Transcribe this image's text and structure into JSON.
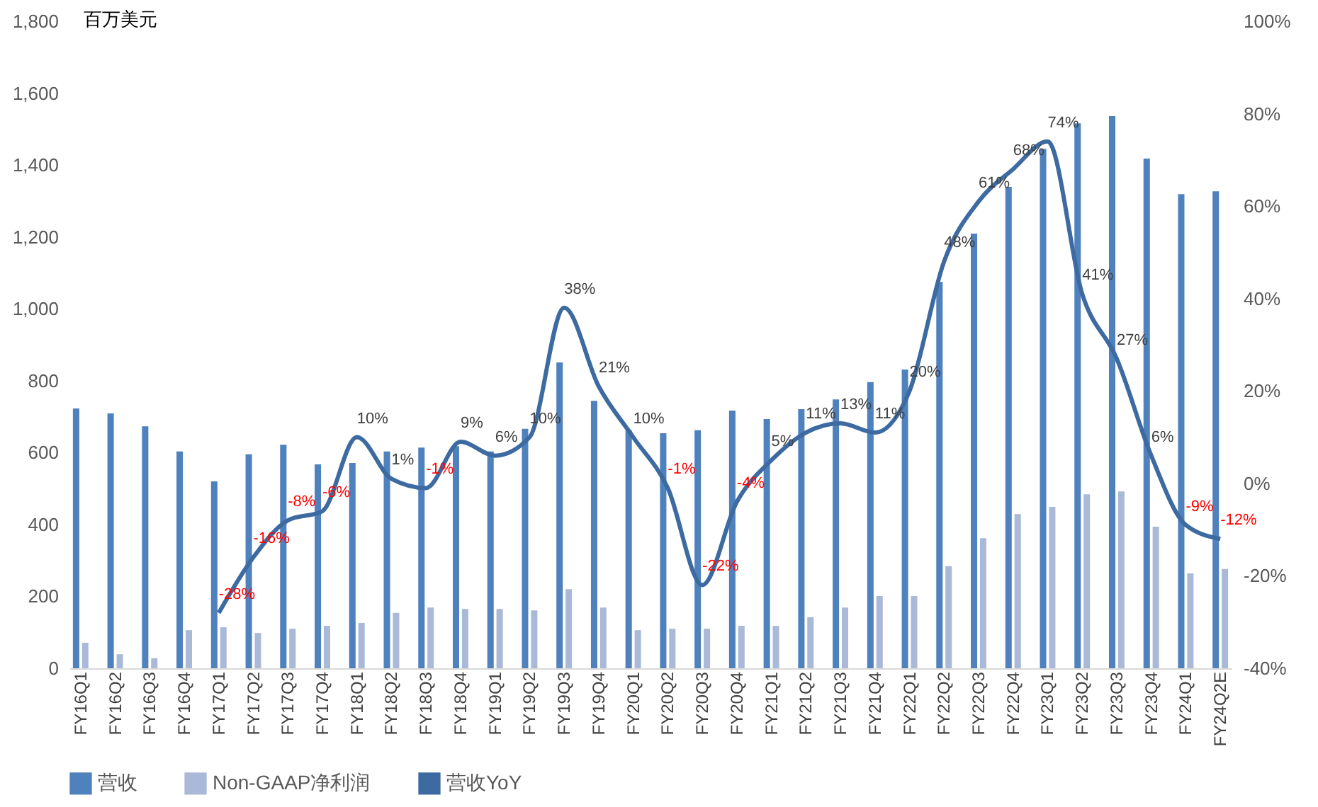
{
  "chart_data": {
    "type": "bar",
    "ylabel": "百万美元",
    "categories": [
      "FY16Q1",
      "FY16Q2",
      "FY16Q3",
      "FY16Q4",
      "FY17Q1",
      "FY17Q2",
      "FY17Q3",
      "FY17Q4",
      "FY18Q1",
      "FY18Q2",
      "FY18Q3",
      "FY18Q4",
      "FY19Q1",
      "FY19Q2",
      "FY19Q3",
      "FY19Q4",
      "FY20Q1",
      "FY20Q2",
      "FY20Q3",
      "FY20Q4",
      "FY21Q1",
      "FY21Q2",
      "FY21Q3",
      "FY21Q4",
      "FY22Q1",
      "FY22Q2",
      "FY22Q3",
      "FY22Q4",
      "FY23Q1",
      "FY23Q2",
      "FY23Q3",
      "FY23Q4",
      "FY24Q1",
      "FY24Q2E"
    ],
    "series": [
      {
        "name": "营收",
        "color": "#4f81bd",
        "values": [
          723,
          709,
          673,
          603,
          520,
          595,
          622,
          567,
          571,
          603,
          614,
          618,
          603,
          666,
          851,
          744,
          662,
          654,
          662,
          717,
          693,
          721,
          748,
          796,
          831,
          1075,
          1209,
          1339,
          1445,
          1516,
          1536,
          1418,
          1319,
          1327
        ]
      },
      {
        "name": "Non-GAAP净利润",
        "color": "#aab9d8",
        "values": [
          71,
          39,
          28,
          106,
          114,
          98,
          110,
          118,
          126,
          154,
          169,
          165,
          165,
          161,
          220,
          169,
          106,
          110,
          110,
          118,
          118,
          142,
          169,
          201,
          201,
          284,
          362,
          429,
          449,
          484,
          492,
          394,
          264,
          276
        ]
      },
      {
        "name": "营收YoY",
        "type": "line",
        "axis": "y2",
        "color": "#3d6aa0",
        "values": [
          null,
          null,
          null,
          null,
          -28,
          -16,
          -8,
          -6,
          10,
          1,
          -1,
          9,
          6,
          10,
          38,
          21,
          10,
          -1,
          -22,
          -4,
          5,
          11,
          13,
          11,
          20,
          48,
          61,
          68,
          74,
          41,
          27,
          6,
          -9,
          -12
        ],
        "value_labels": [
          null,
          null,
          null,
          null,
          "-28%",
          "-16%",
          "-8%",
          "-6%",
          "10%",
          "1%",
          "-1%",
          "9%",
          "6%",
          "10%",
          "38%",
          "21%",
          "10%",
          "-1%",
          "-22%",
          "-4%",
          "5%",
          "11%",
          "13%",
          "11%",
          "20%",
          "48%",
          "61%",
          "68%",
          "74%",
          "41%",
          "27%",
          "6%",
          "-9%",
          "-12%"
        ]
      }
    ],
    "ylim": [
      0,
      1800
    ],
    "yticks": [
      0,
      200,
      400,
      600,
      800,
      {
        "value": 1000,
        "label": "1,000"
      },
      {
        "value": 1200,
        "label": "1,200"
      },
      {
        "value": 1400,
        "label": "1,400"
      },
      {
        "value": 1600,
        "label": "1,600"
      },
      {
        "value": 1800,
        "label": "1,800"
      }
    ],
    "y2lim": [
      -40,
      100
    ],
    "y2ticks": [
      {
        "value": -40,
        "label": "-40%"
      },
      {
        "value": -20,
        "label": "-20%"
      },
      {
        "value": 0,
        "label": "0%"
      },
      {
        "value": 20,
        "label": "20%"
      },
      {
        "value": 40,
        "label": "40%"
      },
      {
        "value": 60,
        "label": "60%"
      },
      {
        "value": 80,
        "label": "80%"
      },
      {
        "value": 100,
        "label": "100%"
      }
    ],
    "grid": false,
    "legend": "bottom",
    "marker": "none",
    "line_style": "solid"
  }
}
